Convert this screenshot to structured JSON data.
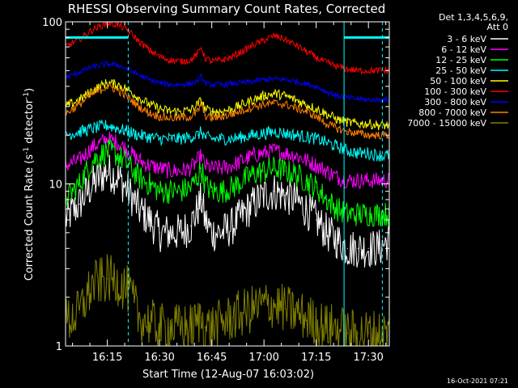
{
  "chart_data": {
    "type": "line",
    "title": "RHESSI Observing Summary Count Rates, Corrected",
    "xlabel": "Start Time (12-Aug-07 16:03:02)",
    "ylabel": "Corrected Count Rate (s",
    "ylabel_sup1": "-1",
    "ylabel_mid": " detector",
    "ylabel_sup2": "-1",
    "ylabel_end": ")",
    "yscale": "log",
    "ylim": [
      1,
      100
    ],
    "y_ticks": [
      {
        "value": 1,
        "label": "1"
      },
      {
        "value": 10,
        "label": "10"
      },
      {
        "value": 100,
        "label": "100"
      }
    ],
    "x_range_minutes": [
      0,
      93
    ],
    "x_ticks": [
      {
        "minute": 12,
        "label": "16:15"
      },
      {
        "minute": 27,
        "label": "16:30"
      },
      {
        "minute": 42,
        "label": "16:45"
      },
      {
        "minute": 57,
        "label": "17:00"
      },
      {
        "minute": 72,
        "label": "17:15"
      },
      {
        "minute": 87,
        "label": "17:30"
      }
    ],
    "legend_header": [
      "Det 1,3,4,5,6,9,",
      "Att 0"
    ],
    "legend_position": "top-right",
    "footer_timestamp": "16-Oct-2021 07:21",
    "series": [
      {
        "name": "3 - 6 keV",
        "color": "#ffffff",
        "x": [
          0,
          4,
          8,
          12,
          15,
          18,
          21,
          24,
          27,
          30,
          33,
          36,
          38,
          39,
          40,
          42,
          45,
          48,
          51,
          54,
          57,
          60,
          63,
          66,
          69,
          72,
          75,
          78,
          81,
          84,
          87,
          90,
          93
        ],
        "y": [
          6.0,
          7.5,
          10.0,
          12.0,
          11.0,
          9.0,
          7.0,
          6.0,
          5.0,
          5.0,
          5.0,
          5.5,
          7.0,
          8.0,
          6.0,
          5.0,
          5.0,
          5.5,
          6.5,
          7.5,
          8.5,
          9.0,
          8.5,
          8.0,
          7.0,
          6.0,
          5.0,
          4.5,
          4.0,
          4.0,
          4.0,
          4.0,
          4.5
        ]
      },
      {
        "name": "6 - 12 keV",
        "color": "#ff00ff",
        "x": [
          0,
          4,
          8,
          12,
          15,
          18,
          21,
          24,
          27,
          30,
          33,
          36,
          38,
          39,
          40,
          42,
          45,
          48,
          51,
          54,
          57,
          60,
          63,
          66,
          69,
          72,
          75,
          78,
          81,
          84,
          87,
          90,
          93
        ],
        "y": [
          13.0,
          14.0,
          17.0,
          19.0,
          18.0,
          16.0,
          14.0,
          13.0,
          12.5,
          12.0,
          12.0,
          12.5,
          14.0,
          15.0,
          13.0,
          12.5,
          12.5,
          13.0,
          14.0,
          15.0,
          15.5,
          16.0,
          15.5,
          15.0,
          14.0,
          13.0,
          12.0,
          11.0,
          10.5,
          10.5,
          10.5,
          10.5,
          10.5
        ]
      },
      {
        "name": "12 - 25 keV",
        "color": "#00ff00",
        "x": [
          0,
          4,
          8,
          12,
          15,
          18,
          21,
          24,
          27,
          30,
          33,
          36,
          38,
          39,
          40,
          42,
          45,
          48,
          51,
          54,
          57,
          60,
          63,
          66,
          69,
          72,
          75,
          78,
          81,
          84,
          87,
          90,
          93
        ],
        "y": [
          8.0,
          10.0,
          14.0,
          16.0,
          15.0,
          13.0,
          11.0,
          10.0,
          9.0,
          9.0,
          9.0,
          9.5,
          11.0,
          12.5,
          10.0,
          9.0,
          9.0,
          9.5,
          10.5,
          11.5,
          12.0,
          12.5,
          12.0,
          11.5,
          10.5,
          9.5,
          8.0,
          7.0,
          6.5,
          6.5,
          6.5,
          6.5,
          6.5
        ]
      },
      {
        "name": "25 - 50 keV",
        "color": "#00ffff",
        "x": [
          0,
          4,
          8,
          12,
          15,
          18,
          21,
          24,
          27,
          30,
          33,
          36,
          38,
          39,
          40,
          42,
          45,
          48,
          51,
          54,
          57,
          60,
          63,
          66,
          69,
          72,
          75,
          78,
          81,
          84,
          87,
          90,
          93
        ],
        "y": [
          20.0,
          21.0,
          22.0,
          23.0,
          22.0,
          21.0,
          20.0,
          19.5,
          19.0,
          19.0,
          19.0,
          19.5,
          20.0,
          21.0,
          19.5,
          19.0,
          19.0,
          19.0,
          19.5,
          20.0,
          20.5,
          21.0,
          20.5,
          20.0,
          19.5,
          19.0,
          18.0,
          17.0,
          16.0,
          15.5,
          15.5,
          15.0,
          15.0
        ]
      },
      {
        "name": "50 - 100 keV",
        "color": "#ffff00",
        "x": [
          0,
          4,
          8,
          12,
          15,
          18,
          21,
          24,
          27,
          30,
          33,
          36,
          38,
          39,
          40,
          42,
          45,
          48,
          51,
          54,
          57,
          60,
          63,
          66,
          69,
          72,
          75,
          78,
          81,
          84,
          87,
          90,
          93
        ],
        "y": [
          30.0,
          33.0,
          38.0,
          42.0,
          41.0,
          38.0,
          34.0,
          31.0,
          29.0,
          28.0,
          28.0,
          28.5,
          31.0,
          33.0,
          29.0,
          28.0,
          28.0,
          29.0,
          31.0,
          33.0,
          35.0,
          36.0,
          35.0,
          33.0,
          31.0,
          29.0,
          27.0,
          25.0,
          24.0,
          23.5,
          23.5,
          23.0,
          23.0
        ]
      },
      {
        "name": "100 - 300 keV",
        "color": "#ff0000",
        "x": [
          0,
          4,
          8,
          12,
          15,
          18,
          21,
          24,
          27,
          30,
          33,
          36,
          38,
          39,
          40,
          42,
          45,
          48,
          51,
          54,
          57,
          60,
          63,
          66,
          69,
          72,
          75,
          78,
          81,
          84,
          87,
          90,
          93
        ],
        "y": [
          70.0,
          78.0,
          90.0,
          98.0,
          96.0,
          88.0,
          76.0,
          67.0,
          61.0,
          58.0,
          57.0,
          58.0,
          64.0,
          70.0,
          60.0,
          57.0,
          58.0,
          61.0,
          66.0,
          72.0,
          77.0,
          82.0,
          78.0,
          72.0,
          66.0,
          60.0,
          56.0,
          53.0,
          51.0,
          50.0,
          50.0,
          50.0,
          50.0
        ]
      },
      {
        "name": "300 - 800 keV",
        "color": "#0000ff",
        "x": [
          0,
          4,
          8,
          12,
          15,
          18,
          21,
          24,
          27,
          30,
          33,
          36,
          38,
          39,
          40,
          42,
          45,
          48,
          51,
          54,
          57,
          60,
          63,
          66,
          69,
          72,
          75,
          78,
          81,
          84,
          87,
          90,
          93
        ],
        "y": [
          45.0,
          49.0,
          53.0,
          55.0,
          54.0,
          51.0,
          47.0,
          44.0,
          42.0,
          41.0,
          41.0,
          41.5,
          43.0,
          46.0,
          42.0,
          41.0,
          41.0,
          41.5,
          42.0,
          43.0,
          44.0,
          44.5,
          44.0,
          43.0,
          41.5,
          40.0,
          37.0,
          35.0,
          34.0,
          33.5,
          33.0,
          33.0,
          33.0
        ]
      },
      {
        "name": "800 - 7000 keV",
        "color": "#ff8000",
        "x": [
          0,
          4,
          8,
          12,
          15,
          18,
          21,
          24,
          27,
          30,
          33,
          36,
          38,
          39,
          40,
          42,
          45,
          48,
          51,
          54,
          57,
          60,
          63,
          66,
          69,
          72,
          75,
          78,
          81,
          84,
          87,
          90,
          93
        ],
        "y": [
          27.0,
          31.0,
          36.0,
          40.0,
          38.0,
          34.0,
          30.0,
          27.5,
          26.0,
          25.5,
          25.5,
          26.0,
          28.0,
          31.0,
          26.5,
          25.5,
          26.0,
          27.0,
          28.5,
          30.0,
          31.0,
          31.5,
          31.0,
          29.5,
          28.0,
          26.0,
          23.5,
          22.0,
          21.0,
          20.5,
          20.0,
          20.0,
          20.0
        ]
      },
      {
        "name": "7000 - 15000 keV",
        "color": "#808000",
        "x": [
          0,
          4,
          8,
          12,
          15,
          18,
          21,
          24,
          27,
          30,
          33,
          36,
          38,
          39,
          40,
          42,
          45,
          48,
          51,
          54,
          57,
          60,
          63,
          66,
          69,
          72,
          75,
          78,
          81,
          84,
          87,
          90,
          93
        ],
        "y": [
          1.4,
          1.6,
          2.4,
          2.6,
          2.5,
          2.2,
          1.5,
          1.4,
          1.3,
          1.3,
          1.3,
          1.3,
          1.4,
          1.5,
          1.3,
          1.3,
          1.4,
          1.5,
          1.6,
          1.7,
          1.8,
          1.8,
          1.7,
          1.6,
          1.5,
          1.4,
          1.3,
          1.3,
          1.2,
          1.2,
          1.2,
          1.2,
          1.2
        ]
      }
    ],
    "annotations": [
      {
        "kind": "flag_bar",
        "color": "#00ffff",
        "x": [
          0,
          18
        ],
        "y": 80
      },
      {
        "kind": "flag_bar",
        "color": "#00ffff",
        "x": [
          80,
          93
        ],
        "y": 80
      },
      {
        "kind": "vline_solid",
        "color": "#00ffff",
        "x": 80
      },
      {
        "kind": "vline_dashed",
        "color": "#00ffff",
        "x": 18
      },
      {
        "kind": "vline_dashed",
        "color": "#00ffff",
        "x": 91
      }
    ]
  }
}
